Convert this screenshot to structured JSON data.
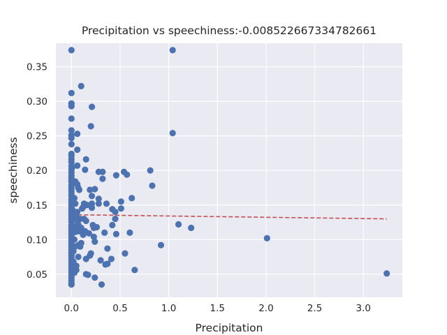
{
  "chart_data": {
    "type": "scatter",
    "title": "Precipitation vs speechiness:-0.008522667334782661",
    "xlabel": "Precipitation",
    "ylabel": "speechiness",
    "xlim": [
      -0.16,
      3.4
    ],
    "ylim": [
      0.0165,
      0.384
    ],
    "xticks": [
      0.0,
      0.5,
      1.0,
      1.5,
      2.0,
      2.5,
      3.0
    ],
    "xtick_labels": [
      "0.0",
      "0.5",
      "1.0",
      "1.5",
      "2.0",
      "2.5",
      "3.0"
    ],
    "yticks": [
      0.05,
      0.1,
      0.15,
      0.2,
      0.25,
      0.3,
      0.35
    ],
    "ytick_labels": [
      "0.05",
      "0.10",
      "0.15",
      "0.20",
      "0.25",
      "0.30",
      "0.35"
    ],
    "grid": true,
    "background": "#EAEAF2",
    "point_color": "#4C72B0",
    "trend_color": "#C44E52",
    "trend_line": {
      "x": [
        0.0,
        3.24
      ],
      "y": [
        0.136,
        0.13
      ]
    },
    "points": [
      [
        0.0,
        0.374
      ],
      [
        0.0,
        0.312
      ],
      [
        0.0,
        0.297
      ],
      [
        0.0,
        0.293
      ],
      [
        0.0,
        0.275
      ],
      [
        0.0,
        0.258
      ],
      [
        0.0,
        0.251
      ],
      [
        0.0,
        0.247
      ],
      [
        0.0,
        0.238
      ],
      [
        0.0,
        0.224
      ],
      [
        0.0,
        0.221
      ],
      [
        0.0,
        0.216
      ],
      [
        0.0,
        0.212
      ],
      [
        0.0,
        0.206
      ],
      [
        0.0,
        0.201
      ],
      [
        0.0,
        0.197
      ],
      [
        0.0,
        0.192
      ],
      [
        0.0,
        0.188
      ],
      [
        0.0,
        0.184
      ],
      [
        0.0,
        0.179
      ],
      [
        0.0,
        0.175
      ],
      [
        0.0,
        0.171
      ],
      [
        0.0,
        0.167
      ],
      [
        0.0,
        0.163
      ],
      [
        0.0,
        0.158
      ],
      [
        0.0,
        0.154
      ],
      [
        0.0,
        0.15
      ],
      [
        0.0,
        0.146
      ],
      [
        0.0,
        0.142
      ],
      [
        0.0,
        0.138
      ],
      [
        0.0,
        0.134
      ],
      [
        0.0,
        0.13
      ],
      [
        0.0,
        0.126
      ],
      [
        0.0,
        0.121
      ],
      [
        0.0,
        0.117
      ],
      [
        0.0,
        0.113
      ],
      [
        0.0,
        0.109
      ],
      [
        0.0,
        0.105
      ],
      [
        0.0,
        0.101
      ],
      [
        0.0,
        0.097
      ],
      [
        0.0,
        0.093
      ],
      [
        0.0,
        0.089
      ],
      [
        0.0,
        0.085
      ],
      [
        0.0,
        0.081
      ],
      [
        0.0,
        0.077
      ],
      [
        0.0,
        0.073
      ],
      [
        0.0,
        0.069
      ],
      [
        0.0,
        0.065
      ],
      [
        0.0,
        0.061
      ],
      [
        0.0,
        0.057
      ],
      [
        0.0,
        0.053
      ],
      [
        0.0,
        0.049
      ],
      [
        0.0,
        0.045
      ],
      [
        0.0,
        0.041
      ],
      [
        0.0,
        0.037
      ],
      [
        0.0,
        0.035
      ],
      [
        0.01,
        0.205
      ],
      [
        0.01,
        0.143
      ],
      [
        0.02,
        0.119
      ],
      [
        0.02,
        0.083
      ],
      [
        0.02,
        0.068
      ],
      [
        0.03,
        0.16
      ],
      [
        0.03,
        0.134
      ],
      [
        0.03,
        0.1
      ],
      [
        0.03,
        0.052
      ],
      [
        0.04,
        0.184
      ],
      [
        0.04,
        0.152
      ],
      [
        0.04,
        0.111
      ],
      [
        0.04,
        0.09
      ],
      [
        0.05,
        0.136
      ],
      [
        0.05,
        0.12
      ],
      [
        0.05,
        0.062
      ],
      [
        0.05,
        0.056
      ],
      [
        0.06,
        0.253
      ],
      [
        0.06,
        0.23
      ],
      [
        0.06,
        0.207
      ],
      [
        0.06,
        0.18
      ],
      [
        0.06,
        0.14
      ],
      [
        0.06,
        0.128
      ],
      [
        0.07,
        0.175
      ],
      [
        0.07,
        0.122
      ],
      [
        0.07,
        0.092
      ],
      [
        0.07,
        0.075
      ],
      [
        0.08,
        0.172
      ],
      [
        0.08,
        0.112
      ],
      [
        0.09,
        0.13
      ],
      [
        0.09,
        0.09
      ],
      [
        0.1,
        0.322
      ],
      [
        0.1,
        0.117
      ],
      [
        0.1,
        0.095
      ],
      [
        0.11,
        0.145
      ],
      [
        0.12,
        0.147
      ],
      [
        0.12,
        0.107
      ],
      [
        0.13,
        0.152
      ],
      [
        0.13,
        0.13
      ],
      [
        0.14,
        0.201
      ],
      [
        0.14,
        0.112
      ],
      [
        0.15,
        0.216
      ],
      [
        0.15,
        0.127
      ],
      [
        0.15,
        0.072
      ],
      [
        0.15,
        0.05
      ],
      [
        0.16,
        0.15
      ],
      [
        0.17,
        0.049
      ],
      [
        0.18,
        0.109
      ],
      [
        0.19,
        0.172
      ],
      [
        0.19,
        0.077
      ],
      [
        0.2,
        0.264
      ],
      [
        0.2,
        0.08
      ],
      [
        0.21,
        0.292
      ],
      [
        0.21,
        0.163
      ],
      [
        0.21,
        0.152
      ],
      [
        0.21,
        0.146
      ],
      [
        0.22,
        0.121
      ],
      [
        0.23,
        0.117
      ],
      [
        0.23,
        0.104
      ],
      [
        0.24,
        0.173
      ],
      [
        0.24,
        0.097
      ],
      [
        0.24,
        0.045
      ],
      [
        0.26,
        0.118
      ],
      [
        0.28,
        0.198
      ],
      [
        0.28,
        0.159
      ],
      [
        0.28,
        0.152
      ],
      [
        0.3,
        0.07
      ],
      [
        0.31,
        0.035
      ],
      [
        0.32,
        0.198
      ],
      [
        0.32,
        0.188
      ],
      [
        0.34,
        0.11
      ],
      [
        0.35,
        0.064
      ],
      [
        0.36,
        0.152
      ],
      [
        0.37,
        0.087
      ],
      [
        0.37,
        0.065
      ],
      [
        0.41,
        0.072
      ],
      [
        0.42,
        0.144
      ],
      [
        0.42,
        0.121
      ],
      [
        0.45,
        0.14
      ],
      [
        0.45,
        0.13
      ],
      [
        0.46,
        0.108
      ],
      [
        0.46,
        0.193
      ],
      [
        0.51,
        0.155
      ],
      [
        0.51,
        0.145
      ],
      [
        0.54,
        0.198
      ],
      [
        0.55,
        0.08
      ],
      [
        0.57,
        0.194
      ],
      [
        0.6,
        0.11
      ],
      [
        0.62,
        0.16
      ],
      [
        0.65,
        0.056
      ],
      [
        0.81,
        0.2
      ],
      [
        0.83,
        0.178
      ],
      [
        0.92,
        0.092
      ],
      [
        1.04,
        0.374
      ],
      [
        1.04,
        0.254
      ],
      [
        1.1,
        0.122
      ],
      [
        1.23,
        0.117
      ],
      [
        2.01,
        0.102
      ],
      [
        3.24,
        0.051
      ]
    ]
  }
}
